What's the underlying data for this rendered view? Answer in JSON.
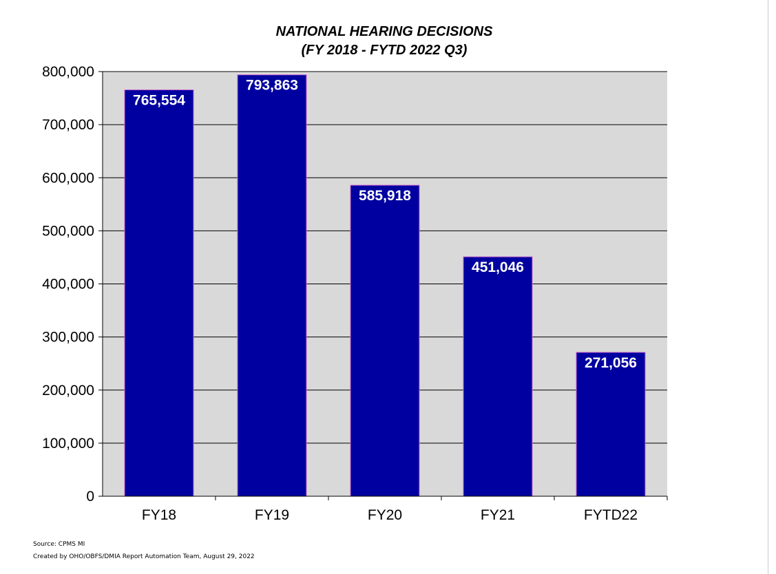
{
  "chart_data": {
    "type": "bar",
    "title": "NATIONAL HEARING DECISIONS",
    "subtitle": "(FY 2018 - FYTD 2022 Q3)",
    "categories": [
      "FY18",
      "FY19",
      "FY20",
      "FY21",
      "FYTD22"
    ],
    "values": [
      765554,
      793863,
      585918,
      451046,
      271056
    ],
    "value_labels": [
      "765,554",
      "793,863",
      "585,918",
      "451,046",
      "271,056"
    ],
    "xlabel": "",
    "ylabel": "",
    "ylim": [
      0,
      800000
    ],
    "yticks": [
      0,
      100000,
      200000,
      300000,
      400000,
      500000,
      600000,
      700000,
      800000
    ],
    "ytick_labels": [
      "0",
      "100,000",
      "200,000",
      "300,000",
      "400,000",
      "500,000",
      "600,000",
      "700,000",
      "800,000"
    ],
    "grid": true,
    "legend": "none",
    "colors": {
      "bar": "#0000A0",
      "bar_edge": "#CC66CC",
      "plot_bg": "#D9D9D9"
    }
  },
  "footer": {
    "source": "Source: CPMS MI",
    "created": "Created by OHO/OBFS/DMIA Report Automation Team, August 29, 2022"
  }
}
